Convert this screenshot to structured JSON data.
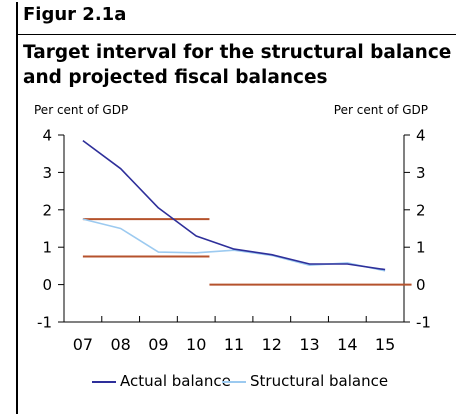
{
  "figure": {
    "label": "Figur 2.1a",
    "title_line1": "Target interval for the structural balance",
    "title_line2": "and projected fiscal balances"
  },
  "colors": {
    "actual": "#2e2f9a",
    "structural": "#9ccaf0",
    "interval": "#b5522c",
    "axis": "#000000"
  },
  "chart_data": {
    "type": "line",
    "x": [
      "07",
      "08",
      "09",
      "10",
      "11",
      "12",
      "13",
      "14",
      "15"
    ],
    "ylabel_left": "Per cent of GDP",
    "ylabel_right": "Per cent of GDP",
    "ylim": [
      -1,
      4
    ],
    "yticks": [
      -1,
      0,
      1,
      2,
      3,
      4
    ],
    "series": [
      {
        "name": "Actual balance",
        "color": "#2e2f9a",
        "values": [
          3.85,
          3.1,
          2.05,
          1.3,
          0.95,
          0.8,
          0.55,
          0.55,
          0.4
        ]
      },
      {
        "name": "Structural balance",
        "color": "#9ccaf0",
        "values": [
          1.75,
          1.5,
          0.87,
          0.85,
          0.92,
          0.78,
          0.52,
          0.58,
          0.37
        ]
      }
    ],
    "target_lines": [
      {
        "x_start": 0,
        "x_end": 3.35,
        "y": 1.75
      },
      {
        "x_start": 0,
        "x_end": 3.35,
        "y": 0.75
      },
      {
        "x_start": 3.35,
        "x_end": 8.7,
        "y": 0
      }
    ],
    "grid": false,
    "legend_position": "bottom"
  }
}
